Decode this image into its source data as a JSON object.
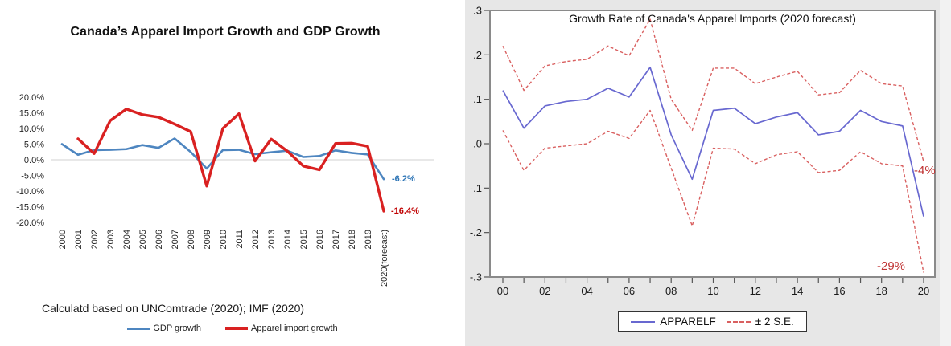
{
  "chart_data": [
    {
      "type": "line",
      "panel": "left",
      "title": "Canada’s Apparel Import Growth and GDP Growth",
      "source_note": "Calculatd based on UNComtrade (2020); IMF (2020)",
      "categories": [
        "2000",
        "2001",
        "2002",
        "2003",
        "2004",
        "2005",
        "2006",
        "2007",
        "2008",
        "2009",
        "2010",
        "2011",
        "2012",
        "2013",
        "2014",
        "2015",
        "2016",
        "2017",
        "2018",
        "2019",
        "2020(forecast)"
      ],
      "ytick_labels": [
        "20.0%",
        "15.0%",
        "10.0%",
        "5.0%",
        "0.0%",
        "-5.0%",
        "-10.0%",
        "-15.0%",
        "-20.0%"
      ],
      "ytick_values": [
        20,
        15,
        10,
        5,
        0,
        -5,
        -10,
        -15,
        -20
      ],
      "ylim": [
        -20,
        20
      ],
      "grid": "zero-line-only",
      "legend_position": "bottom",
      "series": [
        {
          "name": "GDP growth",
          "color": "#4e86c0",
          "values": [
            5.0,
            1.6,
            3.1,
            3.2,
            3.4,
            4.7,
            3.8,
            6.8,
            2.5,
            -2.8,
            3.1,
            3.2,
            1.8,
            2.4,
            2.9,
            0.9,
            1.2,
            3.0,
            2.2,
            1.7,
            -6.2
          ]
        },
        {
          "name": "Apparel import growth",
          "color": "#d92121",
          "values": [
            null,
            6.7,
            2.0,
            12.5,
            16.2,
            14.4,
            13.6,
            11.4,
            9.0,
            -8.4,
            10.0,
            14.7,
            -0.4,
            6.6,
            2.8,
            -2.0,
            -3.2,
            5.2,
            5.3,
            4.3,
            -16.4
          ]
        }
      ],
      "end_labels": [
        {
          "text": "-6.2%",
          "color": "#2e75b6"
        },
        {
          "text": "-16.4%",
          "color": "#c00000"
        }
      ]
    },
    {
      "type": "line",
      "panel": "right",
      "title": "Growth Rate of Canada's Apparel Imports (2020 forecast)",
      "x_tick_labels": [
        "00",
        "02",
        "04",
        "06",
        "08",
        "10",
        "12",
        "14",
        "16",
        "18",
        "20"
      ],
      "ytick_labels": [
        ".3",
        ".2",
        ".1",
        ".0",
        "-.1",
        "-.2",
        "-.3"
      ],
      "ytick_values": [
        0.3,
        0.2,
        0.1,
        0.0,
        -0.1,
        -0.2,
        -0.3
      ],
      "ylim": [
        -0.3,
        0.3
      ],
      "legend_position": "bottom-box",
      "series": [
        {
          "name": "APPARELF",
          "style": "solid",
          "color": "#6868d0",
          "values": [
            0.12,
            0.035,
            0.085,
            0.095,
            0.1,
            0.125,
            0.105,
            0.172,
            0.02,
            -0.08,
            0.075,
            0.08,
            0.045,
            0.06,
            0.07,
            0.02,
            0.028,
            0.075,
            0.05,
            0.04,
            -0.164
          ]
        },
        {
          "name": "+2 S.E.",
          "style": "dashed",
          "color": "#d96060",
          "values": [
            0.22,
            0.12,
            0.175,
            0.185,
            0.19,
            0.22,
            0.198,
            0.28,
            0.1,
            0.03,
            0.17,
            0.17,
            0.135,
            0.15,
            0.163,
            0.11,
            0.115,
            0.165,
            0.135,
            0.13,
            -0.04
          ]
        },
        {
          "name": "-2 S.E.",
          "style": "dashed",
          "color": "#d96060",
          "values": [
            0.03,
            -0.06,
            -0.01,
            -0.005,
            0.0,
            0.028,
            0.012,
            0.075,
            -0.055,
            -0.185,
            -0.01,
            -0.012,
            -0.045,
            -0.025,
            -0.018,
            -0.065,
            -0.06,
            -0.018,
            -0.045,
            -0.05,
            -0.29
          ]
        }
      ],
      "legend": [
        {
          "label": "APPARELF",
          "style": "solid",
          "color": "#6868d0"
        },
        {
          "label": "± 2 S.E.",
          "style": "dashed",
          "color": "#d96060"
        }
      ],
      "annotations": [
        {
          "text": "-4%",
          "color": "#c03434"
        },
        {
          "text": "-29%",
          "color": "#c03434"
        }
      ]
    }
  ]
}
